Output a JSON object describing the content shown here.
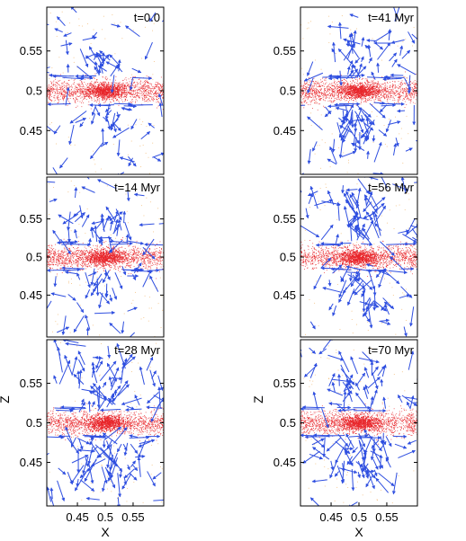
{
  "figure": {
    "colors": {
      "particles": "#e8262b",
      "arrows": "#2f4fe0",
      "sparse": "#f0b060",
      "frame": "#000000"
    }
  },
  "chart_data": [
    {
      "type": "scatter",
      "label": "t=0.0",
      "xlabel": "",
      "ylabel": "",
      "xlim": [
        0.395,
        0.605
      ],
      "ylim": [
        0.395,
        0.605
      ],
      "yticks": [
        "0.45",
        "0.5",
        "0.55"
      ],
      "xticks": [],
      "burst_strength": 0.15
    },
    {
      "type": "scatter",
      "label": "t=41 Myr",
      "xlabel": "",
      "ylabel": "",
      "xlim": [
        0.395,
        0.605
      ],
      "ylim": [
        0.395,
        0.605
      ],
      "yticks": [
        "0.45",
        "0.5",
        "0.55"
      ],
      "xticks": [],
      "burst_strength": 0.65
    },
    {
      "type": "scatter",
      "label": "t=14 Myr",
      "xlabel": "",
      "ylabel": "",
      "xlim": [
        0.395,
        0.605
      ],
      "ylim": [
        0.395,
        0.605
      ],
      "yticks": [
        "0.45",
        "0.5",
        "0.55"
      ],
      "xticks": [],
      "burst_strength": 0.3
    },
    {
      "type": "scatter",
      "label": "t=56 Myr",
      "xlabel": "",
      "ylabel": "",
      "xlim": [
        0.395,
        0.605
      ],
      "ylim": [
        0.395,
        0.605
      ],
      "yticks": [
        "0.45",
        "0.5",
        "0.55"
      ],
      "xticks": [],
      "burst_strength": 0.75
    },
    {
      "type": "scatter",
      "label": "t=28 Myr",
      "xlabel": "X",
      "ylabel": "Z",
      "xlim": [
        0.395,
        0.605
      ],
      "ylim": [
        0.395,
        0.605
      ],
      "yticks": [
        "0.45",
        "0.5",
        "0.55"
      ],
      "xticks": [
        "0.45",
        "0.5",
        "0.55"
      ],
      "burst_strength": 0.95
    },
    {
      "type": "scatter",
      "label": "t=70 Myr",
      "xlabel": "X",
      "ylabel": "Z",
      "xlim": [
        0.395,
        0.605
      ],
      "ylim": [
        0.395,
        0.605
      ],
      "yticks": [
        "0.45",
        "0.5",
        "0.55"
      ],
      "xticks": [
        "0.45",
        "0.5",
        "0.55"
      ],
      "burst_strength": 0.7
    }
  ]
}
